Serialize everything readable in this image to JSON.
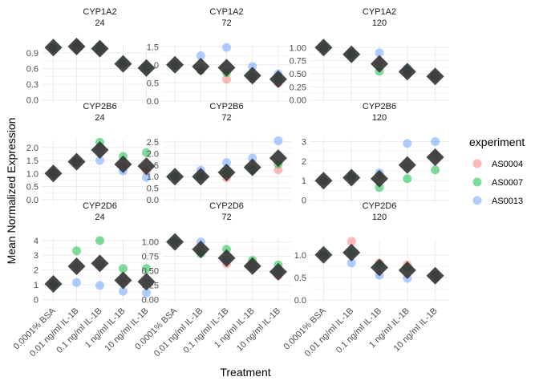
{
  "chart_data": {
    "type": "scatter",
    "xlabel": "Treatment",
    "ylabel": "Mean Normalized Expression",
    "categories": [
      "0.0001% BSA",
      "0.01 ng/ml IL-1B",
      "0.1 ng/ml IL-1B",
      "1 ng/ml IL-1B",
      "10 ng/ml IL-1B"
    ],
    "legend": {
      "title": "experiment",
      "position": "right",
      "entries": [
        {
          "name": "AS0004",
          "color": "#F8766D"
        },
        {
          "name": "AS0007",
          "color": "#00BA38"
        },
        {
          "name": "AS0013",
          "color": "#619CFF"
        }
      ]
    },
    "mean_marker_color": "#333333",
    "grid": true,
    "panels": [
      {
        "gene": "CYP1A2",
        "time": "24",
        "ylim": [
          -0.05,
          1.05
        ],
        "yticks": [
          0.0,
          0.3,
          0.6,
          0.9
        ],
        "ytick_labels": [
          "0.0",
          "0.3",
          "0.6",
          "0.9"
        ],
        "series": {
          "AS0004": [
            1.0,
            1.02,
            1.0,
            0.7,
            0.6
          ],
          "AS0007": [
            1.0,
            1.07,
            1.02,
            0.7,
            0.62
          ],
          "AS0013": [
            1.0,
            1.0,
            0.95,
            0.68,
            0.62
          ]
        },
        "mean": [
          1.0,
          1.02,
          0.98,
          0.69,
          0.61
        ]
      },
      {
        "gene": "CYP1A2",
        "time": "72",
        "ylim": [
          -0.05,
          1.55
        ],
        "yticks": [
          0.0,
          0.5,
          1.0,
          1.5
        ],
        "ytick_labels": [
          "0.0",
          "0.5",
          "1.0",
          "1.5"
        ],
        "series": {
          "AS0004": [
            1.0,
            0.85,
            0.6,
            0.62,
            0.5
          ],
          "AS0007": [
            1.0,
            0.85,
            0.78,
            0.68,
            0.6
          ],
          "AS0013": [
            1.0,
            1.25,
            1.48,
            0.95,
            0.75
          ]
        },
        "mean": [
          1.0,
          0.95,
          0.92,
          0.7,
          0.6
        ]
      },
      {
        "gene": "CYP1A2",
        "time": "120",
        "ylim": [
          -0.05,
          1.05
        ],
        "yticks": [
          0.0,
          0.25,
          0.5,
          0.75,
          1.0
        ],
        "ytick_labels": [
          "0.00",
          "0.25",
          "0.50",
          "0.75",
          "1.00"
        ],
        "series": {
          "AS0004": [
            1.0,
            0.87,
            0.72,
            0.5,
            0.45
          ],
          "AS0007": [
            1.0,
            0.87,
            0.55,
            0.55,
            0.45
          ],
          "AS0013": [
            1.0,
            0.88,
            0.9,
            0.6,
            0.46
          ]
        },
        "mean": [
          1.0,
          0.87,
          0.69,
          0.54,
          0.45
        ]
      },
      {
        "gene": "CYP2B6",
        "time": "24",
        "ylim": [
          -0.1,
          2.3
        ],
        "yticks": [
          0.0,
          0.5,
          1.0,
          1.5,
          2.0
        ],
        "ytick_labels": [
          "0.0",
          "0.5",
          "1.0",
          "1.5",
          "2.0"
        ],
        "series": {
          "AS0004": [
            1.0,
            1.45,
            1.95,
            1.3,
            1.1
          ],
          "AS0007": [
            1.0,
            1.45,
            2.2,
            1.65,
            1.8
          ],
          "AS0013": [
            1.0,
            1.45,
            1.5,
            1.1,
            0.85
          ]
        },
        "mean": [
          1.0,
          1.45,
          1.9,
          1.35,
          1.28
        ]
      },
      {
        "gene": "CYP2B6",
        "time": "72",
        "ylim": [
          -0.1,
          2.6
        ],
        "yticks": [
          0.0,
          0.5,
          1.0,
          1.5,
          2.0,
          2.5
        ],
        "ytick_labels": [
          "0.0",
          "0.5",
          "1.0",
          "1.5",
          "2.0",
          "2.5"
        ],
        "series": {
          "AS0004": [
            1.0,
            1.0,
            0.95,
            1.3,
            1.3
          ],
          "AS0007": [
            1.0,
            1.0,
            1.15,
            1.3,
            1.55
          ],
          "AS0013": [
            1.0,
            1.28,
            1.6,
            1.8,
            2.55
          ]
        },
        "mean": [
          1.0,
          1.0,
          1.18,
          1.4,
          1.8
        ]
      },
      {
        "gene": "CYP2B6",
        "time": "120",
        "ylim": [
          -0.1,
          3.1
        ],
        "yticks": [
          0,
          1,
          2,
          3
        ],
        "ytick_labels": [
          "0",
          "1",
          "2",
          "3"
        ],
        "series": {
          "AS0004": [
            1.0,
            1.2,
            1.2,
            1.7,
            2.3
          ],
          "AS0007": [
            1.0,
            1.2,
            0.65,
            1.1,
            1.55
          ],
          "AS0013": [
            1.0,
            1.2,
            1.4,
            2.9,
            3.0
          ]
        },
        "mean": [
          1.0,
          1.15,
          1.1,
          1.8,
          2.2
        ]
      },
      {
        "gene": "CYP2D6",
        "time": "24",
        "ylim": [
          -0.2,
          4.1
        ],
        "yticks": [
          0,
          1,
          2,
          3,
          4
        ],
        "ytick_labels": [
          "0",
          "1",
          "2",
          "3",
          "4"
        ],
        "series": {
          "AS0004": [
            1.0,
            2.2,
            2.4,
            1.2,
            1.1
          ],
          "AS0007": [
            1.0,
            3.3,
            4.0,
            2.1,
            2.1
          ],
          "AS0013": [
            1.0,
            1.15,
            0.95,
            0.55,
            0.45
          ]
        },
        "mean": [
          1.05,
          2.25,
          2.45,
          1.3,
          1.2
        ]
      },
      {
        "gene": "CYP2D6",
        "time": "72",
        "ylim": [
          -0.05,
          1.05
        ],
        "yticks": [
          0.0,
          0.25,
          0.5,
          0.75,
          1.0
        ],
        "ytick_labels": [
          "0.00",
          "0.25",
          "0.50",
          "0.75",
          "1.00"
        ],
        "series": {
          "AS0004": [
            1.0,
            0.85,
            0.62,
            0.57,
            0.42
          ],
          "AS0007": [
            1.0,
            0.8,
            0.87,
            0.68,
            0.6
          ],
          "AS0013": [
            1.0,
            1.0,
            0.7,
            0.57,
            0.5
          ]
        },
        "mean": [
          1.0,
          0.87,
          0.72,
          0.58,
          0.48
        ]
      },
      {
        "gene": "CYP2D6",
        "time": "120",
        "ylim": [
          -0.05,
          1.35
        ],
        "yticks": [
          0.0,
          0.5,
          1.0
        ],
        "ytick_labels": [
          "0.0",
          "0.5",
          "1.0"
        ],
        "series": {
          "AS0004": [
            1.0,
            1.3,
            0.82,
            0.78,
            0.55
          ],
          "AS0007": [
            1.0,
            1.05,
            0.78,
            0.72,
            0.55
          ],
          "AS0013": [
            1.0,
            0.82,
            0.55,
            0.48,
            0.5
          ]
        },
        "mean": [
          1.0,
          1.05,
          0.72,
          0.66,
          0.54
        ]
      }
    ]
  }
}
